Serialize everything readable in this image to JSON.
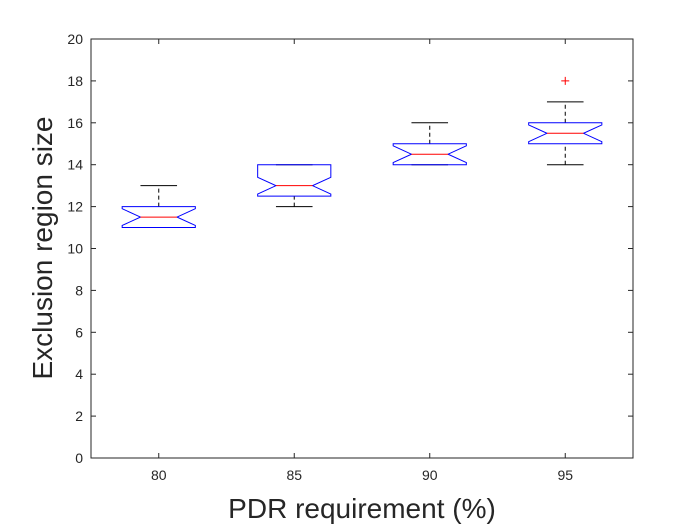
{
  "chart_data": {
    "type": "boxplot",
    "title": "",
    "xlabel": "PDR requirement (%)",
    "ylabel": "Exclusion region size",
    "ylim": [
      0,
      20
    ],
    "yticks": [
      0,
      2,
      4,
      6,
      8,
      10,
      12,
      14,
      16,
      18,
      20
    ],
    "ytick_labels": [
      "0",
      "2",
      "4",
      "6",
      "8",
      "10",
      "12",
      "14",
      "16",
      "18",
      "20"
    ],
    "categories": [
      "80",
      "85",
      "90",
      "95"
    ],
    "notched": true,
    "grid": false,
    "box_color": "#0000FF",
    "median_color": "#FF0000",
    "whisker_color": "#000000",
    "outlier_color": "#FF0000",
    "boxes": [
      {
        "category": "80",
        "whisker_low": 11,
        "q1": 11,
        "median": 11.5,
        "q3": 12,
        "whisker_high": 13,
        "notch_low": 11.1,
        "notch_high": 11.9,
        "outliers": []
      },
      {
        "category": "85",
        "whisker_low": 12,
        "q1": 12.5,
        "median": 13,
        "q3": 14,
        "whisker_high": 14,
        "notch_low": 12.6,
        "notch_high": 13.4,
        "outliers": []
      },
      {
        "category": "90",
        "whisker_low": 14,
        "q1": 14,
        "median": 14.5,
        "q3": 15,
        "whisker_high": 16,
        "notch_low": 14.1,
        "notch_high": 14.9,
        "outliers": []
      },
      {
        "category": "95",
        "whisker_low": 14,
        "q1": 15,
        "median": 15.5,
        "q3": 16,
        "whisker_high": 17,
        "notch_low": 15.1,
        "notch_high": 15.9,
        "outliers": [
          18
        ]
      }
    ]
  }
}
